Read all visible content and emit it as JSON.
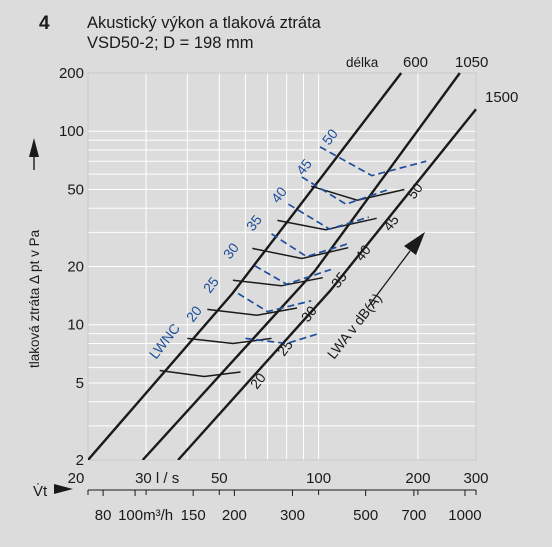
{
  "figure": {
    "number": "4",
    "title_line1": "Akustický výkon a tlaková ztráta",
    "title_line2": "VSD50-2; D = 198 mm"
  },
  "colors": {
    "background": "#dcdcdc",
    "black": "#1a1a1a",
    "blue": "#1f4f9c",
    "grid": "#ffffff"
  },
  "chart_data": {
    "type": "line",
    "x_scale": "log",
    "y_scale": "log",
    "xlim": [
      20,
      300
    ],
    "ylim": [
      2,
      200
    ],
    "xlabel": "l / s",
    "ylabel": "tlaková ztráta Δ pt v Pa",
    "x_symbol": "V̇t",
    "x_ticks": [
      20,
      30,
      50,
      100,
      200,
      300
    ],
    "x_tick_labels": [
      "20",
      "30 l / s",
      "50",
      "100",
      "200",
      "300"
    ],
    "x2_unit": "m³/h",
    "x2_ticks": [
      80,
      100,
      150,
      200,
      300,
      500,
      700,
      1000
    ],
    "x2_tick_labels": [
      "80",
      "100m³/h",
      "150",
      "200",
      "300",
      "500",
      "700",
      "1000"
    ],
    "y_ticks": [
      2,
      5,
      10,
      20,
      50,
      100,
      200
    ],
    "y_tick_labels": [
      "2",
      "5",
      "10",
      "20",
      "50",
      "100",
      "200"
    ],
    "length_caption": "délka",
    "series": [
      {
        "name": "600",
        "points": [
          [
            20,
            2.0
          ],
          [
            54.8,
            14.5
          ],
          [
            178,
            200
          ]
        ]
      },
      {
        "name": "1050",
        "points": [
          [
            29.3,
            2.0
          ],
          [
            97.5,
            19.0
          ],
          [
            268,
            200
          ]
        ]
      },
      {
        "name": "1500",
        "points": [
          [
            37.5,
            2.0
          ],
          [
            108.4,
            15.0
          ],
          [
            300,
            130
          ]
        ]
      }
    ],
    "lwa_caption": "LWA v dB(A)",
    "lwa_segments": [
      {
        "label": "20",
        "points": [
          [
            33,
            5.8
          ],
          [
            45,
            5.4
          ],
          [
            58,
            5.7
          ]
        ]
      },
      {
        "label": "25",
        "points": [
          [
            40,
            8.5
          ],
          [
            55,
            8.0
          ],
          [
            72,
            8.5
          ]
        ]
      },
      {
        "label": "30",
        "points": [
          [
            46,
            12.0
          ],
          [
            65,
            11.2
          ],
          [
            86,
            12.2
          ]
        ]
      },
      {
        "label": "35",
        "points": [
          [
            55,
            17.0
          ],
          [
            77,
            15.9
          ],
          [
            103,
            17.5
          ]
        ]
      },
      {
        "label": "40",
        "points": [
          [
            63,
            24.8
          ],
          [
            89,
            22.0
          ],
          [
            123,
            25.0
          ]
        ]
      },
      {
        "label": "45",
        "points": [
          [
            75,
            34.6
          ],
          [
            105,
            31.0
          ],
          [
            150,
            35.5
          ]
        ]
      },
      {
        "label": "50",
        "points": [
          [
            95,
            52.0
          ],
          [
            131,
            44.0
          ],
          [
            182,
            50.0
          ]
        ]
      }
    ],
    "lwnc_caption": "LWNC",
    "lwnc_curves": [
      {
        "label": "20",
        "points": [
          [
            60,
            8.5
          ],
          [
            80,
            8.0
          ],
          [
            100,
            9.0
          ]
        ]
      },
      {
        "label": "25",
        "points": [
          [
            57,
            14.5
          ],
          [
            70,
            11.7
          ],
          [
            95,
            13.3
          ]
        ]
      },
      {
        "label": "30",
        "points": [
          [
            64,
            20.2
          ],
          [
            80,
            16.2
          ],
          [
            109,
            19.3
          ]
        ]
      },
      {
        "label": "35",
        "points": [
          [
            72,
            29.5
          ],
          [
            92,
            22.5
          ],
          [
            125,
            26.5
          ]
        ]
      },
      {
        "label": "40",
        "points": [
          [
            81,
            42.0
          ],
          [
            108,
            31.2
          ],
          [
            142,
            36.0
          ]
        ]
      },
      {
        "label": "45",
        "points": [
          [
            89,
            58.0
          ],
          [
            121,
            42.0
          ],
          [
            163,
            50.0
          ]
        ]
      },
      {
        "label": "50",
        "points": [
          [
            101,
            83.0
          ],
          [
            145,
            59.0
          ],
          [
            212,
            70.0
          ]
        ]
      }
    ],
    "grid": true
  }
}
